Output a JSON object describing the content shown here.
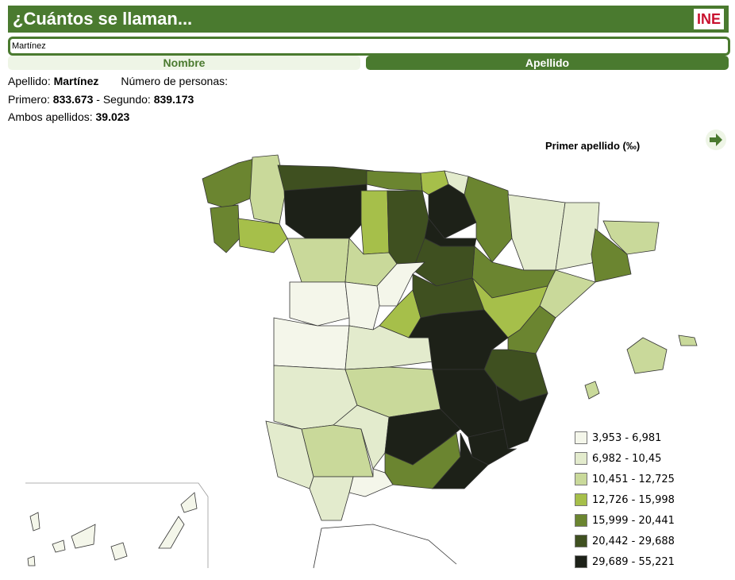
{
  "header": {
    "title": "¿Cuántos se llaman...",
    "logo": "INE"
  },
  "search": {
    "value": "Martínez"
  },
  "tabs": [
    {
      "label": "Nombre",
      "active": false
    },
    {
      "label": "Apellido",
      "active": true
    }
  ],
  "info": {
    "apellido_label": "Apellido:",
    "apellido": "Martínez",
    "numero_label": "Número de personas:",
    "primero_label": "Primero:",
    "primero": "833.673",
    "segundo_label": "- Segundo:",
    "segundo": "839.173",
    "ambos_label": "Ambos apellidos:",
    "ambos": "39.023"
  },
  "map": {
    "title": "Primer apellido (‰)",
    "next_icon": "arrow-right-icon",
    "colors": [
      "#f4f6ea",
      "#e3ebcd",
      "#c9d99a",
      "#a6bf4a",
      "#6b8530",
      "#3f5020",
      "#1d2118"
    ],
    "legend": [
      "3,953 - 6,981",
      "6,982 - 10,45",
      "10,451 - 12,725",
      "12,726 - 15,998",
      "15,999 - 20,441",
      "20,442 - 29,688",
      "29,689 - 55,221"
    ],
    "levels": {
      "coruna": 4,
      "lugo": 2,
      "pontevedra": 4,
      "ourense": 3,
      "asturias": 5,
      "leon": 6,
      "cantabria": 4,
      "bizkaia": 3,
      "gipuzkoa": 1,
      "alava": 6,
      "navarra": 4,
      "palencia": 3,
      "burgos": 5,
      "rioja": 6,
      "huesca": 1,
      "lleida": 1,
      "girona": 2,
      "barcelona": 4,
      "zaragoza": 4,
      "tarragona": 2,
      "soria": 5,
      "zamora": 2,
      "valladolid": 2,
      "segovia": 0,
      "salamanca": 0,
      "avila": 0,
      "madrid": 3,
      "guadalajara": 5,
      "teruel": 3,
      "castellon": 4,
      "caceres": 0,
      "toledo": 1,
      "cuenca": 6,
      "valencia": 5,
      "badajoz": 1,
      "ciudadreal": 2,
      "albacete": 6,
      "alicante": 6,
      "murcia": 6,
      "huelva": 1,
      "sevilla": 2,
      "cordoba": 1,
      "jaen": 6,
      "granada": 4,
      "almeria": 6,
      "malaga": 0,
      "cadiz": 1,
      "mallorca": 2,
      "menorca": 2,
      "ibiza": 2,
      "canarias": 0
    }
  }
}
